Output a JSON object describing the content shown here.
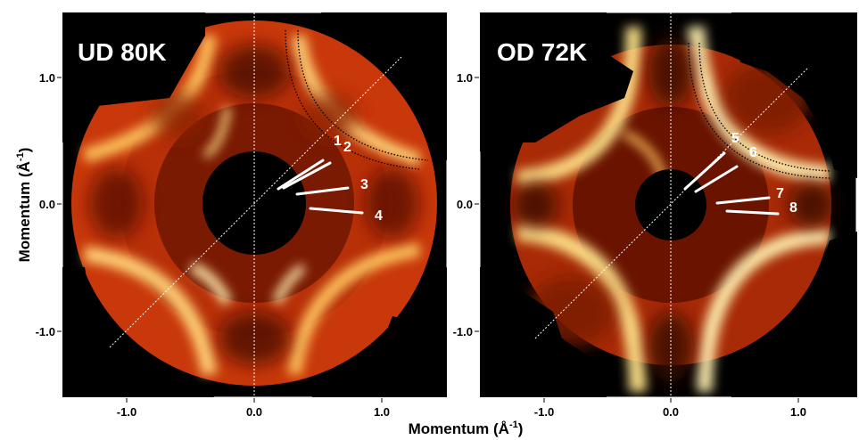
{
  "figure": {
    "y_axis_label": "Momentum (Å",
    "y_axis_label_sup": "-1",
    "y_axis_label_close": ")",
    "x_axis_label": "Momentum (Å",
    "x_axis_label_sup": "-1",
    "x_axis_label_close": ")",
    "y_ticks": [
      "1.0",
      "0.0",
      "-1.0"
    ],
    "panels": [
      {
        "title": "UD 80K",
        "x_ticks": [
          "-1.0",
          "0.0",
          "1.0"
        ],
        "y_ticks": [
          "1.0",
          "0.0",
          "-1.0"
        ],
        "cut_labels": [
          "1",
          "2",
          "3",
          "4"
        ]
      },
      {
        "title": "OD 72K",
        "x_ticks": [
          "-1.0",
          "0.0",
          "1.0"
        ],
        "y_ticks": [
          "1.0",
          "0.0",
          "-1.0"
        ],
        "cut_labels": [
          "5",
          "6",
          "7",
          "8"
        ]
      }
    ],
    "colors": {
      "background": "#000000",
      "intensity_low": "#3a0000",
      "intensity_mid": "#d2400c",
      "intensity_high": "#fff6c8",
      "cut_line": "#ffffff",
      "title_text": "#ffffff"
    }
  }
}
